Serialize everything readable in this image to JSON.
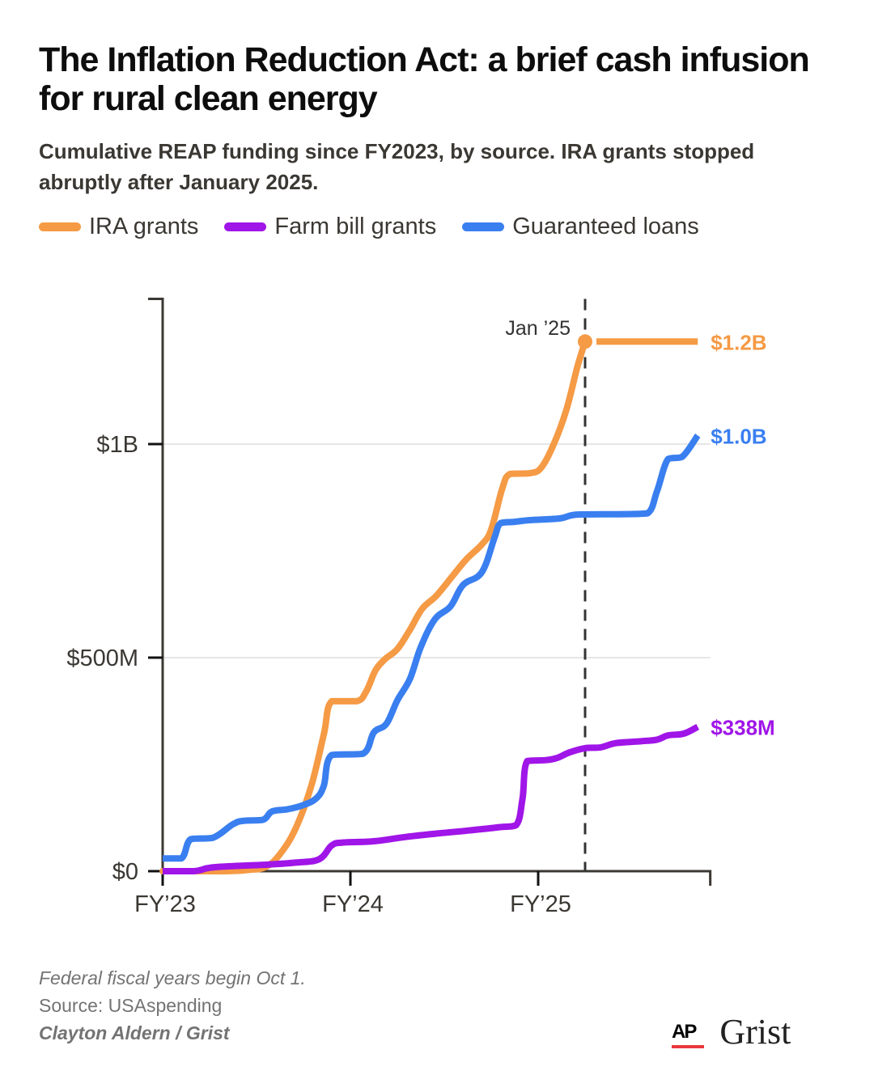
{
  "header": {
    "title": "The Inflation Reduction Act: a brief cash infusion for rural clean energy",
    "subtitle": "Cumulative REAP funding since FY2023, by source. IRA grants stopped abruptly after January 2025."
  },
  "footer": {
    "note": "Federal fiscal years begin Oct 1.",
    "source": "Source: USAspending",
    "credit": "Clayton Aldern / Grist",
    "logo_ap": "AP",
    "logo_grist": "Grist"
  },
  "chart_data": {
    "type": "line",
    "title": "The Inflation Reduction Act: a brief cash infusion for rural clean energy",
    "subtitle": "Cumulative REAP funding since FY2023, by source. IRA grants stopped abruptly after January 2025.",
    "xlabel": "",
    "ylabel": "",
    "x_unit": "months since start of FY2023 (Oct 1, 2022)",
    "xlim": [
      0,
      35
    ],
    "ylim": [
      0,
      1340
    ],
    "grid": "horizontal",
    "legend_position": "top-left",
    "yticks": [
      {
        "value": 0,
        "label": "$0"
      },
      {
        "value": 500,
        "label": "$500M"
      },
      {
        "value": 1000,
        "label": "$1B"
      }
    ],
    "xticks": [
      {
        "value": 0,
        "label": "FY’23"
      },
      {
        "value": 12,
        "label": "FY’24"
      },
      {
        "value": 24,
        "label": "FY’25"
      }
    ],
    "annotation": {
      "x": 27,
      "label": "Jan ’25",
      "style": "dashed-vertical"
    },
    "series": [
      {
        "name": "IRA grants",
        "color": "#f59a45",
        "end_label": "$1.2B",
        "end_point_marker": {
          "x": 27,
          "value": 1240
        },
        "points": [
          [
            0,
            0
          ],
          [
            4,
            0
          ],
          [
            5.5,
            3
          ],
          [
            6.6,
            10
          ],
          [
            7.5,
            40
          ],
          [
            8.5,
            100
          ],
          [
            9.5,
            200
          ],
          [
            10.3,
            320
          ],
          [
            10.8,
            398
          ],
          [
            12.4,
            398
          ],
          [
            13.0,
            420
          ],
          [
            13.6,
            470
          ],
          [
            14.2,
            496
          ],
          [
            15.0,
            520
          ],
          [
            15.8,
            565
          ],
          [
            16.6,
            615
          ],
          [
            17.5,
            645
          ],
          [
            18.5,
            690
          ],
          [
            19.4,
            730
          ],
          [
            20.4,
            765
          ],
          [
            21.0,
            800
          ],
          [
            21.7,
            895
          ],
          [
            22.2,
            930
          ],
          [
            23.5,
            932
          ],
          [
            24.2,
            945
          ],
          [
            25.0,
            1000
          ],
          [
            25.8,
            1080
          ],
          [
            26.5,
            1180
          ],
          [
            27,
            1240
          ],
          [
            34.2,
            1240
          ]
        ]
      },
      {
        "name": "Farm bill grants",
        "color": "#a015e8",
        "end_label": "$338M",
        "points": [
          [
            0,
            0
          ],
          [
            2,
            0
          ],
          [
            3,
            8
          ],
          [
            4.5,
            12
          ],
          [
            6.5,
            15
          ],
          [
            8.5,
            20
          ],
          [
            10.0,
            28
          ],
          [
            10.8,
            60
          ],
          [
            11.5,
            67
          ],
          [
            13.5,
            70
          ],
          [
            15.5,
            80
          ],
          [
            17.5,
            88
          ],
          [
            19.5,
            95
          ],
          [
            21.5,
            103
          ],
          [
            22.6,
            108
          ],
          [
            23.0,
            170
          ],
          [
            23.3,
            258
          ],
          [
            24.5,
            260
          ],
          [
            25.2,
            265
          ],
          [
            26.0,
            278
          ],
          [
            27,
            288
          ],
          [
            28,
            290
          ],
          [
            29,
            300
          ],
          [
            30.5,
            304
          ],
          [
            31.6,
            308
          ],
          [
            32.3,
            318
          ],
          [
            33.3,
            322
          ],
          [
            34.2,
            338
          ]
        ]
      },
      {
        "name": "Guaranteed loans",
        "color": "#3a7ff0",
        "end_label": "$1.0B",
        "points": [
          [
            0,
            30
          ],
          [
            1.2,
            30
          ],
          [
            1.8,
            75
          ],
          [
            3.2,
            78
          ],
          [
            4.5,
            110
          ],
          [
            5.2,
            118
          ],
          [
            6.4,
            120
          ],
          [
            7.0,
            140
          ],
          [
            8.0,
            145
          ],
          [
            9.0,
            155
          ],
          [
            9.8,
            170
          ],
          [
            10.3,
            200
          ],
          [
            10.8,
            272
          ],
          [
            12.8,
            275
          ],
          [
            13.5,
            325
          ],
          [
            14.3,
            345
          ],
          [
            15.0,
            400
          ],
          [
            15.8,
            450
          ],
          [
            16.5,
            525
          ],
          [
            17.4,
            590
          ],
          [
            18.4,
            620
          ],
          [
            19.2,
            670
          ],
          [
            20.4,
            700
          ],
          [
            21.2,
            780
          ],
          [
            21.6,
            815
          ],
          [
            22.5,
            818
          ],
          [
            23.5,
            822
          ],
          [
            25.4,
            826
          ],
          [
            26.5,
            835
          ],
          [
            29.5,
            836
          ],
          [
            31.0,
            838
          ],
          [
            31.6,
            890
          ],
          [
            32.3,
            965
          ],
          [
            33.2,
            970
          ],
          [
            34.2,
            1020
          ]
        ]
      }
    ]
  }
}
